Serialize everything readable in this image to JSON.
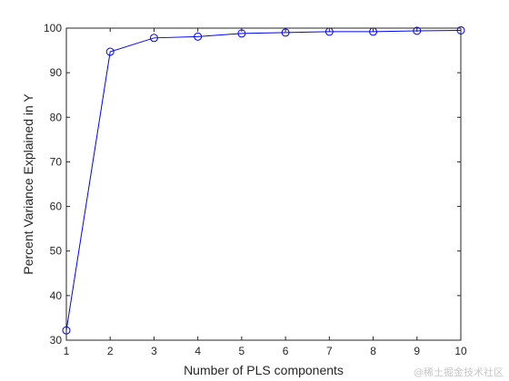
{
  "chart_data": {
    "type": "line",
    "title": "",
    "xlabel": "Number of PLS components",
    "ylabel": "Percent Variance Explained in Y",
    "x": [
      1,
      2,
      3,
      4,
      5,
      6,
      7,
      8,
      9,
      10
    ],
    "series": [
      {
        "values": [
          32.2,
          94.7,
          97.8,
          98.1,
          98.8,
          99.0,
          99.2,
          99.2,
          99.4,
          99.5
        ],
        "color": "#0000ff",
        "marker": "circle"
      }
    ],
    "xlim": [
      1,
      10
    ],
    "ylim": [
      30,
      100
    ],
    "xticks": [
      "1",
      "2",
      "3",
      "4",
      "5",
      "6",
      "7",
      "8",
      "9",
      "10"
    ],
    "yticks": [
      "30",
      "40",
      "50",
      "60",
      "70",
      "80",
      "90",
      "100"
    ],
    "grid": false,
    "box": true
  },
  "watermark": "@稀土掘金技术社区"
}
